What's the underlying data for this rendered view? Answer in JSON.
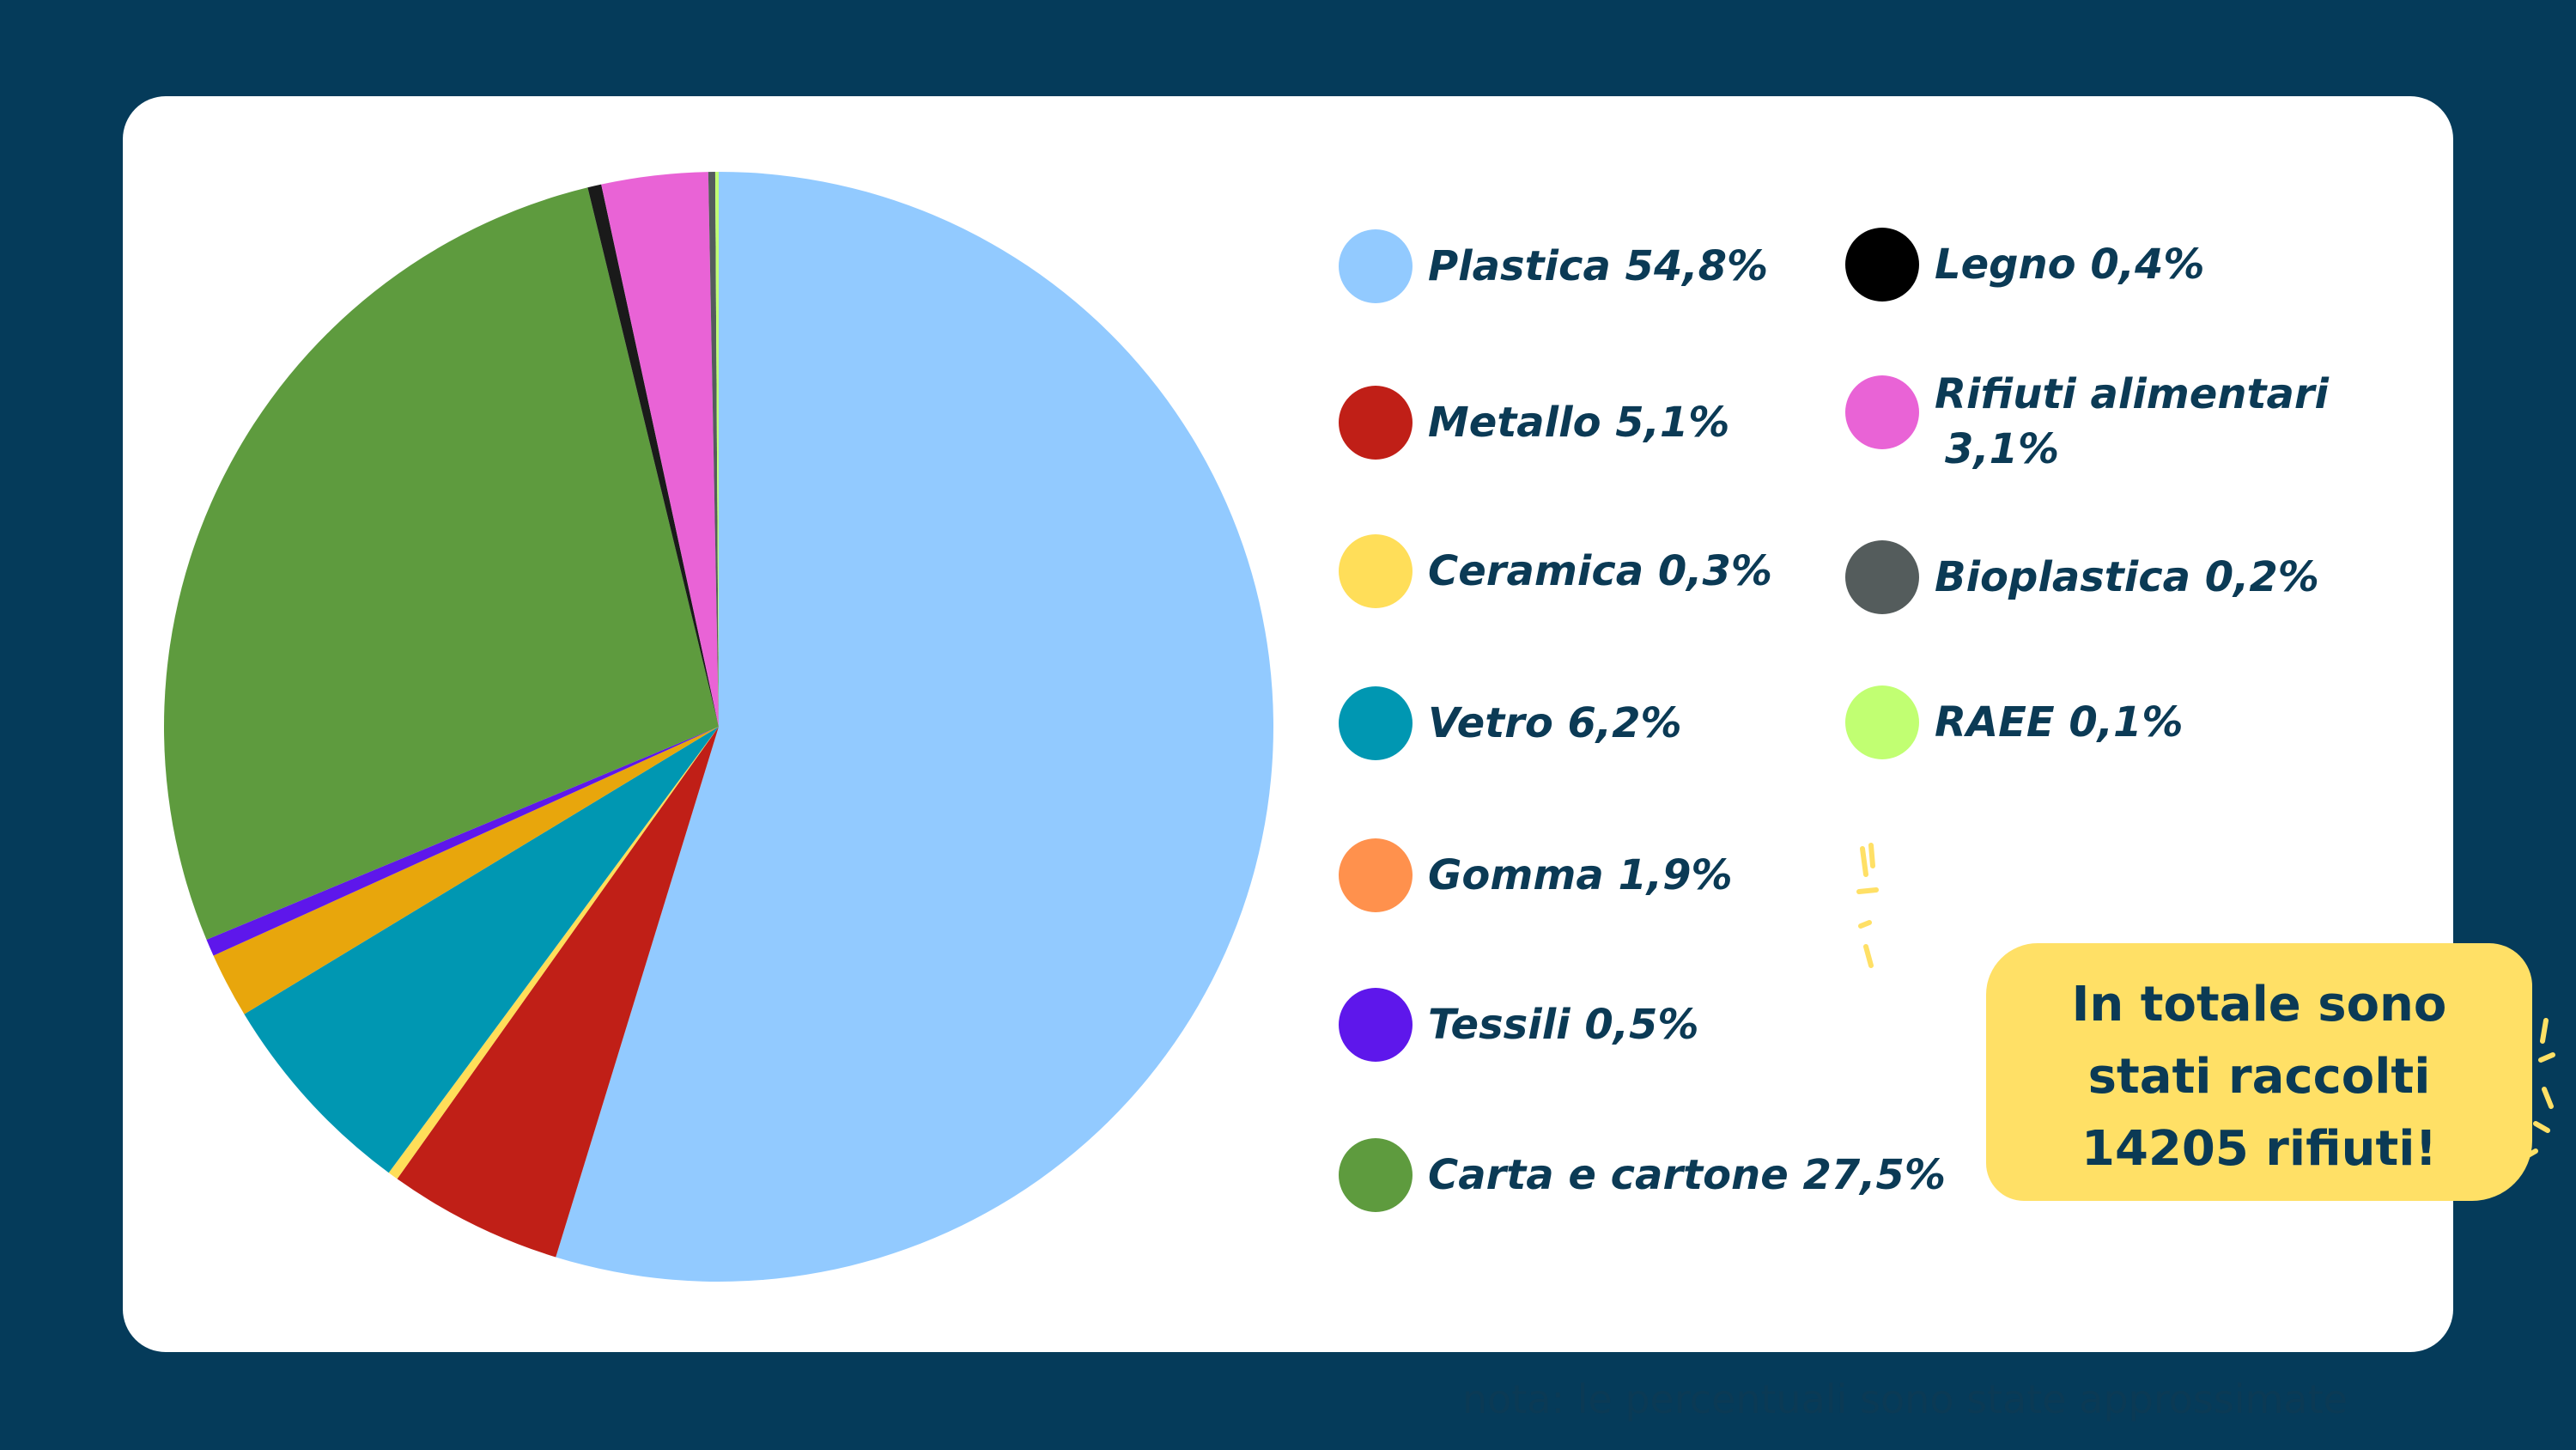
{
  "chart_data": {
    "type": "pie",
    "title": "",
    "slices": [
      {
        "label": "Plastica",
        "value": 54.8,
        "color": "#92caff"
      },
      {
        "label": "Metallo",
        "value": 5.1,
        "color": "#c01f17"
      },
      {
        "label": "Ceramica",
        "value": 0.3,
        "color": "#ffde59"
      },
      {
        "label": "Vetro",
        "value": 6.2,
        "color": "#0097b2"
      },
      {
        "label": "Gomma",
        "value": 1.9,
        "color": "#e8a60c"
      },
      {
        "label": "Tessili",
        "value": 0.5,
        "color": "#5e17eb"
      },
      {
        "label": "Carta e cartone",
        "value": 27.5,
        "color": "#5e9b3e"
      },
      {
        "label": "Legno",
        "value": 0.4,
        "color": "#1a1a1a"
      },
      {
        "label": "Rifiuti alimentari",
        "value": 3.1,
        "color": "#e963d6"
      },
      {
        "label": "Bioplastica",
        "value": 0.2,
        "color": "#545c5c"
      },
      {
        "label": "RAEE",
        "value": 0.1,
        "color": "#c1ff72"
      }
    ]
  },
  "legend": {
    "plastica": "Plastica 54,8%",
    "metallo": "Metallo 5,1%",
    "ceramica": "Ceramica 0,3%",
    "vetro": "Vetro 6,2%",
    "gomma": "Gomma 1,9%",
    "tessili": "Tessili 0,5%",
    "carta": "Carta e cartone 27,5%",
    "legno": "Legno 0,4%",
    "rifiuti_line1": "Rifiuti alimentari",
    "rifiuti_line2": "3,1%",
    "bioplastica": "Bioplastica 0,2%",
    "raee": "RAEE 0,1%",
    "colors": {
      "plastica": "#92caff",
      "metallo": "#c01f17",
      "ceramica": "#ffde59",
      "vetro": "#0097b2",
      "gomma": "#ff914d",
      "tessili": "#5e17eb",
      "carta": "#5e9b3e",
      "legno": "#000000",
      "rifiuti": "#e963d6",
      "bioplastica": "#545c5c",
      "raee": "#c1ff72"
    }
  },
  "callout": {
    "line1": "In totale sono",
    "line2": "stati raccolti",
    "line3": "14205 rifiuti!"
  },
  "note": "nota: le percentuali sono state approssimate"
}
